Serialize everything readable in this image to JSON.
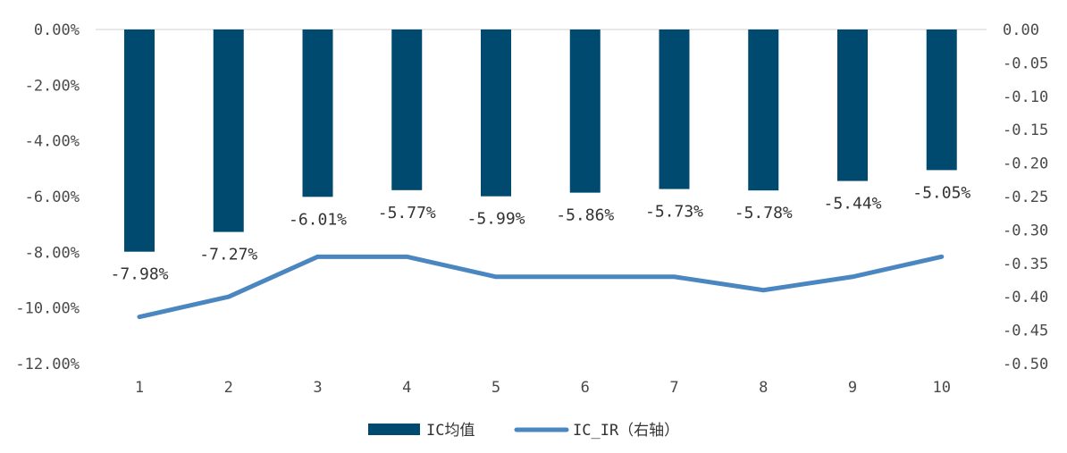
{
  "chart_data": {
    "type": "bar",
    "categories": [
      "1",
      "2",
      "3",
      "4",
      "5",
      "6",
      "7",
      "8",
      "9",
      "10"
    ],
    "series": [
      {
        "name": "IC均值",
        "kind": "bar",
        "axis": "left",
        "color": "#004a70",
        "values": [
          -7.98,
          -7.27,
          -6.01,
          -5.77,
          -5.99,
          -5.86,
          -5.73,
          -5.78,
          -5.44,
          -5.05
        ],
        "labels": [
          "-7.98%",
          "-7.27%",
          "-6.01%",
          "-5.77%",
          "-5.99%",
          "-5.86%",
          "-5.73%",
          "-5.78%",
          "-5.44%",
          "-5.05%"
        ]
      },
      {
        "name": "IC_IR（右轴）",
        "kind": "line",
        "axis": "right",
        "color": "#4a86c0",
        "values": [
          -0.43,
          -0.4,
          -0.34,
          -0.34,
          -0.37,
          -0.37,
          -0.37,
          -0.39,
          -0.37,
          -0.34
        ]
      }
    ],
    "y_left": {
      "range": [
        -12,
        0
      ],
      "ticks": [
        0,
        -2,
        -4,
        -6,
        -8,
        -10,
        -12
      ],
      "tick_labels": [
        "0.00%",
        "-2.00%",
        "-4.00%",
        "-6.00%",
        "-8.00%",
        "-10.00%",
        "-12.00%"
      ]
    },
    "y_right": {
      "range": [
        -0.5,
        0
      ],
      "ticks": [
        0,
        -0.05,
        -0.1,
        -0.15,
        -0.2,
        -0.25,
        -0.3,
        -0.35,
        -0.4,
        -0.45,
        -0.5
      ],
      "tick_labels": [
        "0.00",
        "-0.05",
        "-0.10",
        "-0.15",
        "-0.20",
        "-0.25",
        "-0.30",
        "-0.35",
        "-0.40",
        "-0.45",
        "-0.50"
      ]
    },
    "grid": false,
    "legend": "bottom"
  }
}
